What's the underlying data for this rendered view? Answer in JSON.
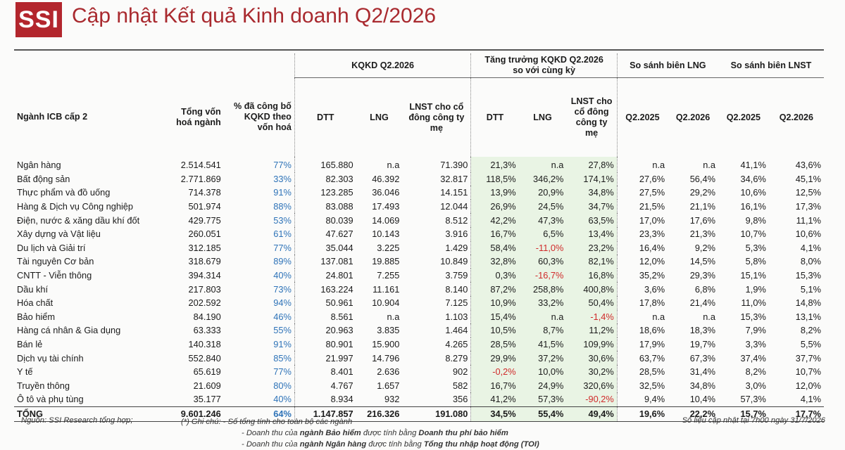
{
  "header": {
    "logo": "SSI",
    "title": "Cập nhật Kết quả Kinh doanh Q2/2026"
  },
  "groups": {
    "kqkd": "KQKD Q2.2026",
    "growth_l1": "Tăng trưởng KQKD Q2.2026",
    "growth_l2": "so với cùng kỳ",
    "lng_margin": "So sánh biên LNG",
    "lnst_margin": "So sánh biên LNST"
  },
  "columns": {
    "sector": "Ngành ICB cấp 2",
    "mcap": "Tổng vốn hoá ngành",
    "reported": "% đã công bố KQKD theo vốn hoá",
    "dtt": "DTT",
    "lng": "LNG",
    "lnst": "LNST cho cổ đông công ty mẹ",
    "g_dtt": "DTT",
    "g_lng": "LNG",
    "g_lnst": "LNST cho cổ đông công ty mẹ",
    "m_q25": "Q2.2025",
    "m_q26": "Q2.2026",
    "n_q25": "Q2.2025",
    "n_q26": "Q2.2026"
  },
  "rows": [
    [
      "Ngân hàng",
      "2.514.541",
      "77%",
      "165.880",
      "n.a",
      "71.390",
      "21,3%",
      "n.a",
      "27,8%",
      "n.a",
      "n.a",
      "41,1%",
      "43,6%"
    ],
    [
      "Bất động sản",
      "2.771.869",
      "33%",
      "82.303",
      "46.392",
      "32.817",
      "118,5%",
      "346,2%",
      "174,1%",
      "27,6%",
      "56,4%",
      "34,6%",
      "45,1%"
    ],
    [
      "Thực phẩm và đồ uống",
      "714.378",
      "91%",
      "123.285",
      "36.046",
      "14.151",
      "13,9%",
      "20,9%",
      "34,8%",
      "27,5%",
      "29,2%",
      "10,6%",
      "12,5%"
    ],
    [
      "Hàng & Dịch vụ Công nghiệp",
      "501.974",
      "88%",
      "83.088",
      "17.493",
      "12.044",
      "26,9%",
      "24,5%",
      "34,7%",
      "21,5%",
      "21,1%",
      "16,1%",
      "17,3%"
    ],
    [
      "Điện, nước & xăng dầu khí đốt",
      "429.775",
      "53%",
      "80.039",
      "14.069",
      "8.512",
      "42,2%",
      "47,3%",
      "63,5%",
      "17,0%",
      "17,6%",
      "9,8%",
      "11,1%"
    ],
    [
      "Xây dựng và Vật liệu",
      "260.051",
      "61%",
      "47.627",
      "10.143",
      "3.916",
      "16,7%",
      "6,5%",
      "13,4%",
      "23,3%",
      "21,3%",
      "10,7%",
      "10,6%"
    ],
    [
      "Du lịch và Giải trí",
      "312.185",
      "77%",
      "35.044",
      "3.225",
      "1.429",
      "58,4%",
      "-11,0%",
      "23,2%",
      "16,4%",
      "9,2%",
      "5,3%",
      "4,1%"
    ],
    [
      "Tài nguyên Cơ bản",
      "318.679",
      "89%",
      "137.081",
      "19.885",
      "10.849",
      "32,8%",
      "60,3%",
      "82,1%",
      "12,0%",
      "14,5%",
      "5,8%",
      "8,0%"
    ],
    [
      "CNTT - Viễn thông",
      "394.314",
      "40%",
      "24.801",
      "7.255",
      "3.759",
      "0,3%",
      "-16,7%",
      "16,8%",
      "35,2%",
      "29,3%",
      "15,1%",
      "15,3%"
    ],
    [
      "Dầu khí",
      "217.803",
      "73%",
      "163.224",
      "11.161",
      "8.140",
      "87,2%",
      "258,8%",
      "400,8%",
      "3,6%",
      "6,8%",
      "1,9%",
      "5,1%"
    ],
    [
      "Hóa chất",
      "202.592",
      "94%",
      "50.961",
      "10.904",
      "7.125",
      "10,9%",
      "33,2%",
      "50,4%",
      "17,8%",
      "21,4%",
      "11,0%",
      "14,8%"
    ],
    [
      "Bảo hiểm",
      "84.190",
      "46%",
      "8.561",
      "n.a",
      "1.103",
      "15,4%",
      "n.a",
      "-1,4%",
      "n.a",
      "n.a",
      "15,3%",
      "13,1%"
    ],
    [
      "Hàng cá nhân & Gia dụng",
      "63.333",
      "55%",
      "20.963",
      "3.835",
      "1.464",
      "10,5%",
      "8,7%",
      "11,2%",
      "18,6%",
      "18,3%",
      "7,9%",
      "8,2%"
    ],
    [
      "Bán lẻ",
      "140.318",
      "91%",
      "80.901",
      "15.900",
      "4.265",
      "28,5%",
      "41,5%",
      "109,9%",
      "17,9%",
      "19,7%",
      "3,3%",
      "5,5%"
    ],
    [
      "Dịch vụ tài chính",
      "552.840",
      "85%",
      "21.997",
      "14.796",
      "8.279",
      "29,9%",
      "37,2%",
      "30,6%",
      "63,7%",
      "67,3%",
      "37,4%",
      "37,7%"
    ],
    [
      "Y tế",
      "65.619",
      "77%",
      "8.401",
      "2.636",
      "902",
      "-0,2%",
      "10,0%",
      "30,2%",
      "28,5%",
      "31,4%",
      "8,2%",
      "10,7%"
    ],
    [
      "Truyền thông",
      "21.609",
      "80%",
      "4.767",
      "1.657",
      "582",
      "16,7%",
      "24,9%",
      "320,6%",
      "32,5%",
      "34,8%",
      "3,0%",
      "12,0%"
    ],
    [
      "Ô tô và phụ tùng",
      "35.177",
      "40%",
      "8.934",
      "932",
      "356",
      "41,2%",
      "57,3%",
      "-90,2%",
      "9,4%",
      "10,4%",
      "57,3%",
      "4,1%"
    ]
  ],
  "total": [
    "TỔNG",
    "9.601.246",
    "64%",
    "1.147.857",
    "216.326",
    "191.080",
    "34,5%",
    "55,4%",
    "49,4%",
    "19,6%",
    "22,2%",
    "15,7%",
    "17,7%"
  ],
  "footer": {
    "source": "Nguồn: SSI Research tổng hợp;",
    "note_l1": "(*) Ghi chú: - Số tổng tính cho toàn bộ các ngành",
    "note_l2_a": "- Doanh thu của ",
    "note_l2_b": "ngành Bảo hiểm",
    "note_l2_c": " được tính bằng ",
    "note_l2_d": "Doanh thu phí bảo hiểm",
    "note_l3_a": "- Doanh thu của ",
    "note_l3_b": "ngành Ngân hàng",
    "note_l3_c": " được tính bằng ",
    "note_l3_d": "Tổng thu nhập hoạt động (TOI)",
    "updated": "Số liệu cập nhật tại 7h00 ngày 31/7/2026"
  }
}
